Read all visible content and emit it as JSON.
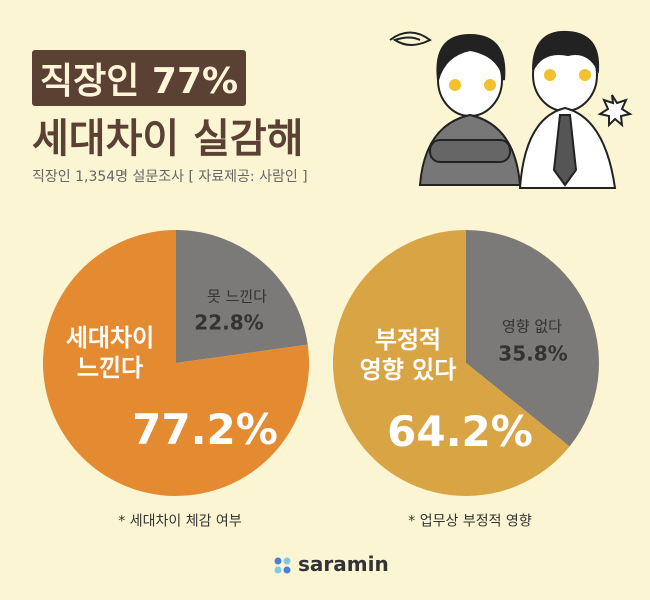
{
  "title_line1": "직장인 77%",
  "title_line2": "세대차이 실감해",
  "subtitle": "직장인 1,354명 설문조사 [ 자료제공: 사람인 ]",
  "brand": "saramin",
  "chart_data": [
    {
      "type": "pie",
      "categories": [
        "못 느낀다",
        "세대차이\n느낀다"
      ],
      "values": [
        22.8,
        77.2
      ],
      "value_labels": [
        "22.8%",
        "77.2%"
      ],
      "colors": [
        "#7b7a78",
        "#e48a30"
      ],
      "caption": "* 세대차이 체감 여부"
    },
    {
      "type": "pie",
      "categories": [
        "영향 없다",
        "부정적\n영향 있다"
      ],
      "values": [
        35.8,
        64.2
      ],
      "value_labels": [
        "35.8%",
        "64.2%"
      ],
      "colors": [
        "#7b7a78",
        "#d9a544"
      ],
      "caption": "* 업무상 부정적 영향"
    }
  ]
}
